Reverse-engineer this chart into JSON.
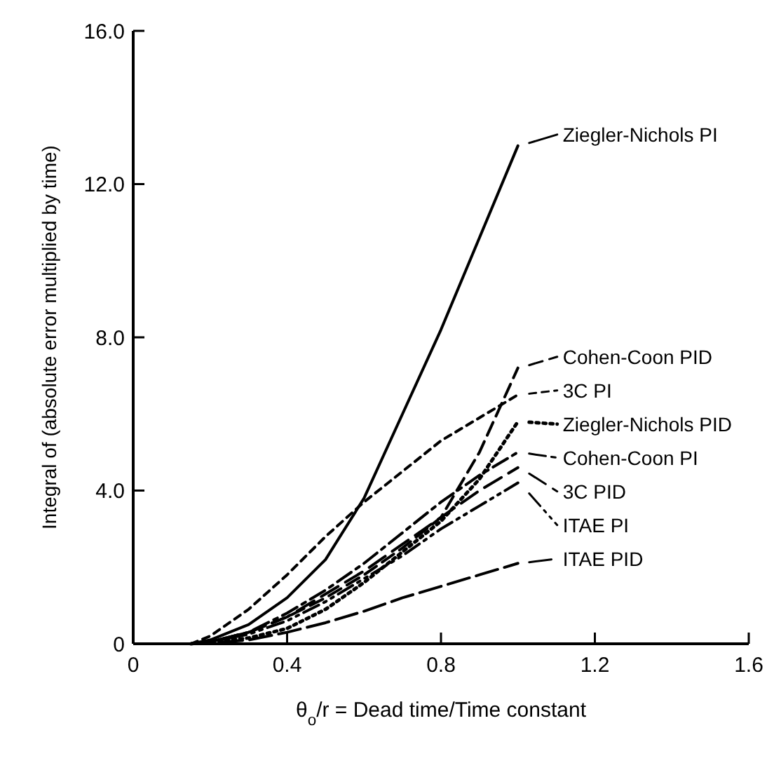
{
  "chart_data": {
    "type": "line",
    "xlabel": "θ$_{o}$/r = Dead time/Time constant",
    "ylabel": "Integral of (absolute error multiplied by time)",
    "xlim": [
      0,
      1.6
    ],
    "ylim": [
      0,
      16
    ],
    "xticks": [
      0,
      {
        "value": 0.4,
        "label": "0.4"
      },
      {
        "value": 0.8,
        "label": "0.8"
      },
      {
        "value": 1.2,
        "label": "1.2"
      },
      {
        "value": 1.6,
        "label": "1.6"
      }
    ],
    "yticks": [
      0,
      {
        "value": 4,
        "label": "4.0"
      },
      {
        "value": 8,
        "label": "8.0"
      },
      {
        "value": 12,
        "label": "12.0"
      },
      {
        "value": 16,
        "label": "16.0"
      }
    ],
    "grid": false,
    "legend": "right",
    "marker": "none",
    "x": [
      0.15,
      0.2,
      0.3,
      0.4,
      0.5,
      0.6,
      0.7,
      0.8,
      0.9,
      1.0
    ],
    "series": [
      {
        "name": "Ziegler-Nichols PI",
        "color": "#000000",
        "line_style": "solid",
        "values": [
          0,
          0.1,
          0.5,
          1.2,
          2.2,
          3.8,
          6.0,
          8.2,
          10.6,
          13.0
        ]
      },
      {
        "name": "Cohen-Coon PID",
        "color": "#000000",
        "line_style": "dashed",
        "values": [
          0,
          0.05,
          0.3,
          0.7,
          1.2,
          1.8,
          2.5,
          3.3,
          5.0,
          7.2
        ]
      },
      {
        "name": "3C PI",
        "color": "#000000",
        "line_style": "dashed",
        "values": [
          0,
          0.2,
          0.9,
          1.8,
          2.8,
          3.7,
          4.5,
          5.3,
          5.9,
          6.5
        ]
      },
      {
        "name": "Ziegler-Nichols PID",
        "color": "#000000",
        "line_style": "dotted",
        "values": [
          0,
          0.05,
          0.15,
          0.4,
          0.9,
          1.6,
          2.4,
          3.2,
          4.3,
          5.8
        ]
      },
      {
        "name": "Cohen-Coon PI",
        "color": "#000000",
        "line_style": "dashed",
        "values": [
          0,
          0.05,
          0.3,
          0.8,
          1.4,
          2.1,
          2.9,
          3.7,
          4.4,
          5.0
        ]
      },
      {
        "name": "3C PID",
        "color": "#000000",
        "line_style": "dashed",
        "values": [
          0,
          0.05,
          0.3,
          0.7,
          1.3,
          1.9,
          2.6,
          3.3,
          4.0,
          4.6
        ]
      },
      {
        "name": "ITAE PI",
        "color": "#000000",
        "line_style": "dashed",
        "values": [
          0,
          0.05,
          0.25,
          0.6,
          1.1,
          1.7,
          2.3,
          3.0,
          3.6,
          4.2
        ]
      },
      {
        "name": "ITAE PID",
        "color": "#000000",
        "line_style": "dashed",
        "values": [
          0,
          0.02,
          0.1,
          0.3,
          0.55,
          0.85,
          1.2,
          1.5,
          1.8,
          2.1
        ]
      }
    ]
  }
}
